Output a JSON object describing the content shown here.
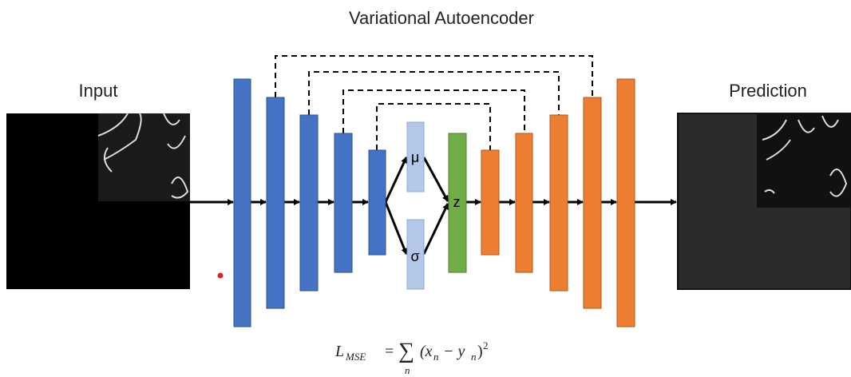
{
  "title": "Variational Autoencoder",
  "input": {
    "label": "Input"
  },
  "output": {
    "label": "Prediction"
  },
  "latent": {
    "mu": "μ",
    "sigma": "σ",
    "z": "z"
  },
  "formula": {
    "lhs": "L",
    "lhs_sub": "MSE",
    "equals": "=",
    "sum": "∑",
    "sum_sub": "n",
    "body_open": "(x",
    "x_sub": "n",
    "minus": " − y",
    "y_sub": "n",
    "body_close": ")",
    "power": "2"
  }
}
